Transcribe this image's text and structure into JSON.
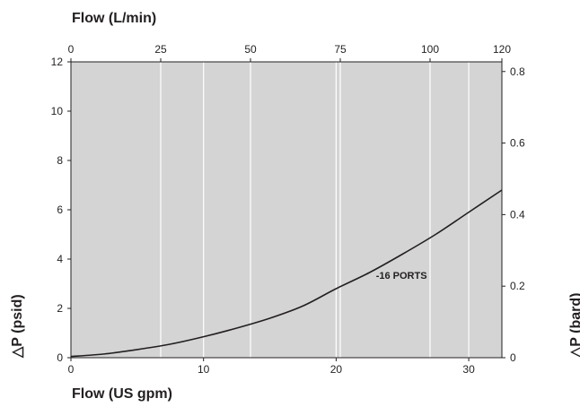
{
  "colors": {
    "plot_background": "#d4d4d4",
    "gridline": "#ffffff",
    "curve": "#231f20",
    "text": "#231f20"
  },
  "chart_data": {
    "type": "line",
    "title": "",
    "xlabel": "Flow (US gpm)",
    "ylabel": "△P (psid)",
    "x2label": "Flow (L/min)",
    "y2label": "△P (bard)",
    "xlim": [
      0,
      32.5
    ],
    "ylim": [
      0,
      12
    ],
    "x2lim": [
      0,
      120
    ],
    "y2lim": [
      0,
      0.827
    ],
    "x_ticks": [
      "0",
      "10",
      "20",
      "30"
    ],
    "y_ticks": [
      "0",
      "2",
      "4",
      "6",
      "8",
      "10",
      "12"
    ],
    "x2_ticks": [
      "0",
      "25",
      "50",
      "75",
      "100",
      "120"
    ],
    "y2_ticks": [
      "0",
      "0.2",
      "0.4",
      "0.6",
      "0.8"
    ],
    "grid": true,
    "series": [
      {
        "name": "-16 PORTS",
        "x": [
          0,
          2.5,
          5,
          7.5,
          10,
          12.5,
          15,
          17.5,
          20,
          22.5,
          25,
          27.5,
          30,
          32.5
        ],
        "y": [
          0.05,
          0.15,
          0.33,
          0.55,
          0.85,
          1.2,
          1.6,
          2.1,
          2.8,
          3.45,
          4.2,
          5.0,
          5.9,
          6.8
        ]
      }
    ],
    "annotations": [
      {
        "text": "-16 PORTS",
        "x": 23,
        "y": 3.2
      }
    ]
  }
}
